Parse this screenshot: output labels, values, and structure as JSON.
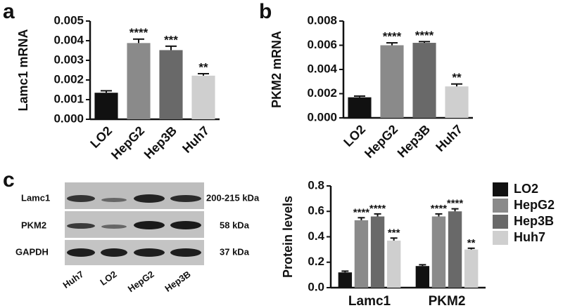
{
  "panel_labels": [
    "a",
    "b",
    "c"
  ],
  "chart_data": [
    {
      "type": "bar",
      "ylabel": "Lamc1 mRNA",
      "categories": [
        "LO2",
        "HepG2",
        "Hep3B",
        "Huh7"
      ],
      "values": [
        0.00135,
        0.00388,
        0.00352,
        0.00222
      ],
      "errors": [
        0.0001,
        0.0002,
        0.0002,
        0.0001
      ],
      "significance": [
        null,
        "****",
        "***",
        "**"
      ],
      "colors": [
        "#111111",
        "#8a8a8a",
        "#696969",
        "#cfcfcf"
      ],
      "ylim": [
        0,
        0.005
      ],
      "yticks": [
        {
          "value": 0,
          "label": "0.000"
        },
        {
          "value": 0.001,
          "label": "0.001"
        },
        {
          "value": 0.002,
          "label": "0.002"
        },
        {
          "value": 0.003,
          "label": "0.003"
        },
        {
          "value": 0.004,
          "label": "0.004"
        },
        {
          "value": 0.005,
          "label": "0.005"
        }
      ]
    },
    {
      "type": "bar",
      "ylabel": "PKM2 mRNA",
      "categories": [
        "LO2",
        "HepG2",
        "Hep3B",
        "Huh7"
      ],
      "values": [
        0.0017,
        0.006,
        0.0062,
        0.0026
      ],
      "errors": [
        0.0001,
        0.0002,
        0.0001,
        0.0002
      ],
      "significance": [
        null,
        "****",
        "****",
        "**"
      ],
      "colors": [
        "#111111",
        "#8a8a8a",
        "#696969",
        "#cfcfcf"
      ],
      "ylim": [
        0,
        0.008
      ],
      "yticks": [
        {
          "value": 0,
          "label": "0.000"
        },
        {
          "value": 0.002,
          "label": "0.002"
        },
        {
          "value": 0.004,
          "label": "0.004"
        },
        {
          "value": 0.006,
          "label": "0.006"
        },
        {
          "value": 0.008,
          "label": "0.008"
        }
      ]
    },
    {
      "type": "grouped_bar",
      "ylabel": "Protein levels",
      "categories": [
        "Lamc1",
        "PKM2"
      ],
      "series": [
        {
          "name": "LO2",
          "color": "#111111",
          "values": [
            0.12,
            0.17
          ],
          "errors": [
            0.01,
            0.01
          ],
          "significance": [
            null,
            null
          ]
        },
        {
          "name": "HepG2",
          "color": "#8a8a8a",
          "values": [
            0.53,
            0.56
          ],
          "errors": [
            0.02,
            0.02
          ],
          "significance": [
            "****",
            "****"
          ]
        },
        {
          "name": "Hep3B",
          "color": "#696969",
          "values": [
            0.56,
            0.6
          ],
          "errors": [
            0.02,
            0.02
          ],
          "significance": [
            "****",
            "****"
          ]
        },
        {
          "name": "Huh7",
          "color": "#cfcfcf",
          "values": [
            0.37,
            0.3
          ],
          "errors": [
            0.02,
            0.01
          ],
          "significance": [
            "***",
            "**"
          ]
        }
      ],
      "ylim": [
        0,
        0.8
      ],
      "yticks": [
        {
          "value": 0,
          "label": "0.0"
        },
        0.2,
        0.4,
        0.6,
        0.8
      ]
    }
  ],
  "blot": {
    "rows": [
      "Lamc1",
      "PKM2",
      "GAPDH"
    ],
    "sizes": [
      "200-215 kDa",
      "58 kDa",
      "37 kDa"
    ],
    "lanes": [
      "Huh7",
      "LO2",
      "HepG2",
      "Hep3B"
    ]
  }
}
